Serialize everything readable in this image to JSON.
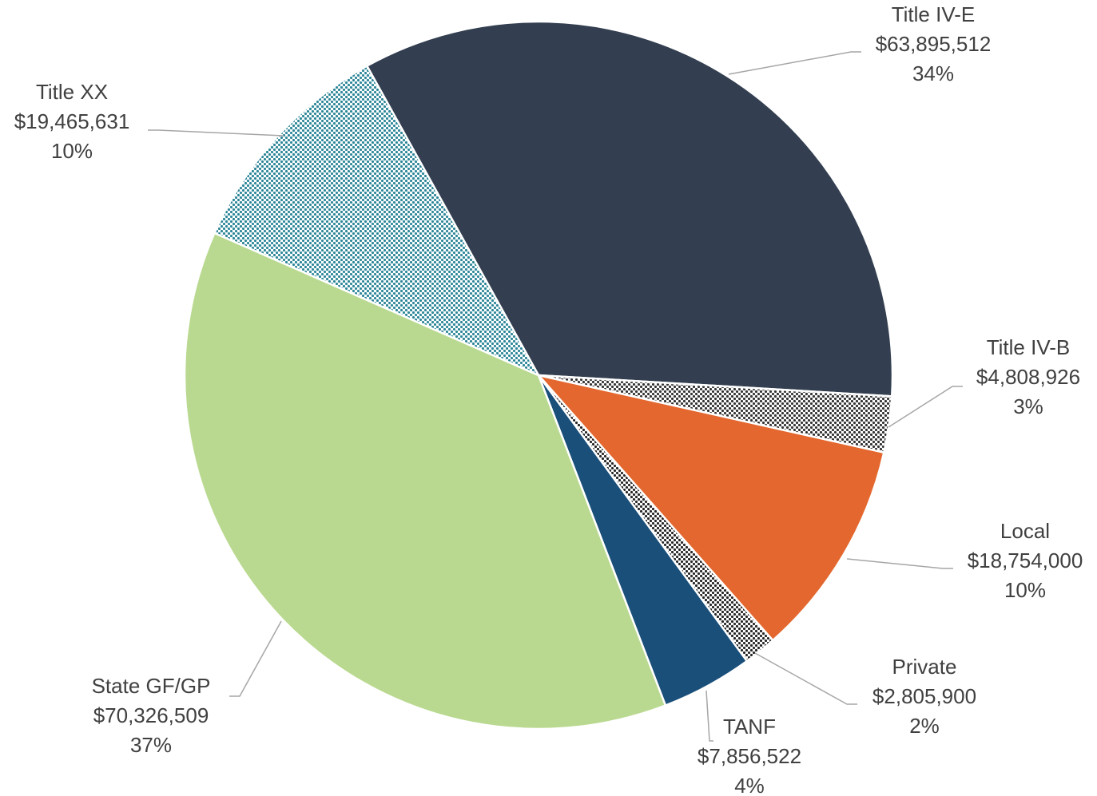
{
  "chart_data": {
    "type": "pie",
    "categories": [
      "Title IV-E",
      "Title IV-B",
      "Local",
      "Private",
      "TANF",
      "State GF/GP",
      "Title XX"
    ],
    "values": [
      63895512,
      4808926,
      18754000,
      2805900,
      7856522,
      70326509,
      19465631
    ],
    "value_labels": [
      "$63,895,512",
      "$4,808,926",
      "$18,754,000",
      "$2,805,900",
      "$7,856,522",
      "$70,326,509",
      "$19,465,631"
    ],
    "percent_labels": [
      "34%",
      "3%",
      "10%",
      "2%",
      "4%",
      "37%",
      "10%"
    ],
    "colors": [
      "#333f50",
      "#333333",
      "#e3672e",
      "#262626",
      "#1a4f7a",
      "#bad990",
      "#2e8799"
    ],
    "patterns": [
      false,
      true,
      false,
      true,
      false,
      false,
      true
    ]
  }
}
